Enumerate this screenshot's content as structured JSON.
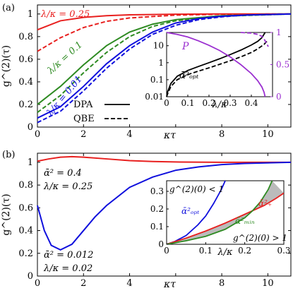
{
  "chart_data": [
    {
      "panel": "(a)",
      "type": "line",
      "xlabel": "κτ",
      "ylabel": "g^(2)(τ)",
      "xlim": [
        0,
        11
      ],
      "ylim": [
        0,
        1.08
      ],
      "x_ticks": [
        0,
        2,
        4,
        6,
        8,
        10
      ],
      "y_ticks": [
        0,
        0.2,
        0.4,
        0.6,
        0.8,
        1
      ],
      "legend": {
        "position": "bottom-center",
        "entries": [
          {
            "label": "DPA",
            "style": "solid"
          },
          {
            "label": "QBE",
            "style": "dashed"
          }
        ]
      },
      "annotations": [
        "λ/κ = 0.25",
        "λ/κ = 0.1",
        "λ/κ = 0.01"
      ],
      "series": [
        {
          "label": "λ/κ = 0.25",
          "method": "DPA",
          "color": "#e8201f",
          "style": "solid",
          "x": [
            0,
            1,
            2,
            3,
            4,
            6,
            8,
            11
          ],
          "values": [
            0.86,
            0.94,
            0.97,
            0.985,
            0.993,
            0.998,
            1.0,
            1.0
          ]
        },
        {
          "label": "λ/κ = 0.25",
          "method": "QBE",
          "color": "#e8201f",
          "style": "dashed",
          "x": [
            0,
            1,
            2,
            3,
            4,
            6,
            8,
            11
          ],
          "values": [
            0.67,
            0.79,
            0.88,
            0.935,
            0.965,
            0.99,
            0.998,
            1.0
          ]
        },
        {
          "label": "λ/κ = 0.1",
          "method": "DPA",
          "color": "#2e8b22",
          "style": "solid",
          "x": [
            0,
            1,
            2,
            3,
            4,
            5,
            6,
            8,
            11
          ],
          "values": [
            0.2,
            0.36,
            0.55,
            0.72,
            0.84,
            0.91,
            0.95,
            0.985,
            1.0
          ]
        },
        {
          "label": "λ/κ = 0.1",
          "method": "QBE",
          "color": "#2e8b22",
          "style": "dashed",
          "x": [
            0,
            1,
            2,
            3,
            4,
            5,
            6,
            8,
            11
          ],
          "values": [
            0.13,
            0.28,
            0.48,
            0.66,
            0.8,
            0.89,
            0.94,
            0.98,
            1.0
          ]
        },
        {
          "label": "λ/κ = 0.01",
          "method": "DPA",
          "color": "#1010dd",
          "style": "solid",
          "x": [
            0,
            1,
            2,
            3,
            4,
            5,
            6,
            7,
            8,
            9,
            11
          ],
          "values": [
            0.08,
            0.18,
            0.36,
            0.56,
            0.72,
            0.84,
            0.92,
            0.96,
            0.98,
            0.99,
            1.0
          ]
        },
        {
          "label": "λ/κ = 0.01",
          "method": "QBE",
          "color": "#1010dd",
          "style": "dashed",
          "x": [
            0,
            1,
            2,
            3,
            4,
            5,
            6,
            7,
            8,
            9,
            11
          ],
          "values": [
            0.04,
            0.14,
            0.32,
            0.52,
            0.69,
            0.82,
            0.9,
            0.95,
            0.975,
            0.99,
            1.0
          ]
        }
      ],
      "inset": {
        "xlabel": "λ/κ",
        "xlim": [
          0,
          0.5
        ],
        "x_ticks": [
          0,
          0.1,
          0.2,
          0.3,
          0.4
        ],
        "left_axis": {
          "scale": "log",
          "ylim": [
            0.01,
            60
          ],
          "ticks": [
            0.01,
            0.1,
            1,
            10
          ],
          "tick_labels": [
            "0.01",
            "0.1",
            "1",
            "10"
          ]
        },
        "right_axis": {
          "scale": "linear",
          "ylim": [
            0,
            1
          ],
          "ticks": [
            0,
            0.5,
            1
          ],
          "tick_labels": [
            "0",
            "0.5",
            "1"
          ]
        },
        "annotations": [
          "ᾱ²ₒₚₜ",
          "P"
        ],
        "series": [
          {
            "label": "ᾱ²ₒₚₜ",
            "method": "DPA",
            "axis": "left",
            "color": "#000000",
            "style": "solid",
            "x": [
              0,
              0.005,
              0.02,
              0.05,
              0.1,
              0.15,
              0.2,
              0.25,
              0.3,
              0.35,
              0.4,
              0.43,
              0.45,
              0.465
            ],
            "values": [
              0.01,
              0.02,
              0.06,
              0.16,
              0.35,
              0.6,
              1.0,
              1.7,
              3.0,
              5.5,
              11,
              18,
              30,
              60
            ]
          },
          {
            "label": "ᾱ²ₒₚₜ",
            "method": "QBE",
            "axis": "left",
            "color": "#000000",
            "style": "dashed",
            "x": [
              0,
              0.005,
              0.02,
              0.05,
              0.1,
              0.15,
              0.2,
              0.25,
              0.3,
              0.35,
              0.4,
              0.43,
              0.46,
              0.48
            ],
            "values": [
              0.01,
              0.015,
              0.04,
              0.1,
              0.2,
              0.32,
              0.5,
              0.8,
              1.3,
              2.2,
              4.0,
              6.5,
              12,
              22
            ]
          },
          {
            "label": "P",
            "method": "DPA",
            "axis": "right",
            "color": "#9b30d0",
            "style": "solid",
            "x": [
              0,
              0.05,
              0.1,
              0.15,
              0.2,
              0.25,
              0.3,
              0.35,
              0.4,
              0.43,
              0.45,
              0.46,
              0.465
            ],
            "values": [
              1.0,
              0.97,
              0.93,
              0.87,
              0.8,
              0.72,
              0.62,
              0.5,
              0.36,
              0.25,
              0.15,
              0.07,
              0.0
            ]
          },
          {
            "label": "P",
            "method": "QBE",
            "axis": "right",
            "color": "#9b30d0",
            "style": "dashed",
            "x": [
              0.35,
              0.4,
              0.43,
              0.45,
              0.46,
              0.47,
              0.48
            ],
            "values": [
              1.0,
              0.99,
              0.97,
              0.94,
              0.9,
              0.84,
              0.78
            ]
          }
        ]
      }
    },
    {
      "panel": "(b)",
      "type": "line",
      "xlabel": "κτ",
      "ylabel": "g^(2)(τ)",
      "xlim": [
        0,
        11
      ],
      "ylim": [
        0,
        1.08
      ],
      "x_ticks": [
        0,
        2,
        4,
        6,
        8,
        10
      ],
      "y_ticks": [
        0,
        0.2,
        0.4,
        0.6,
        0.8,
        1
      ],
      "annotations": [
        "ᾱ² = 0.4",
        "λ/κ = 0.25",
        "ᾱ² = 0.012",
        "λ/κ = 0.02"
      ],
      "series": [
        {
          "label": "ᾱ² = 0.4, λ/κ = 0.25",
          "color": "#e8201f",
          "style": "solid",
          "x": [
            0,
            0.5,
            1,
            1.5,
            2,
            3,
            4,
            5,
            6,
            8,
            11
          ],
          "values": [
            1.01,
            1.03,
            1.045,
            1.05,
            1.045,
            1.03,
            1.015,
            1.007,
            1.003,
            1.0,
            1.0
          ]
        },
        {
          "label": "ᾱ² = 0.012, λ/κ = 0.02",
          "color": "#1010dd",
          "style": "solid",
          "x": [
            0,
            0.3,
            0.6,
            1.0,
            1.5,
            2.0,
            2.5,
            3,
            4,
            5,
            6,
            7,
            8,
            9,
            11
          ],
          "values": [
            0.62,
            0.4,
            0.27,
            0.23,
            0.28,
            0.4,
            0.52,
            0.62,
            0.78,
            0.87,
            0.93,
            0.96,
            0.98,
            0.99,
            1.0
          ]
        }
      ],
      "inset": {
        "xlabel": "λ/κ",
        "xlim": [
          0,
          0.3
        ],
        "ylim": [
          0,
          0.36
        ],
        "x_ticks": [
          0,
          0.1,
          0.2,
          0.3
        ],
        "y_ticks": [
          0,
          0.1,
          0.2,
          0.3
        ],
        "annotations": [
          "g^(2)(0) < 1",
          "g^(2)(0) > 1",
          "ᾱ²ₒₚₜ",
          "ᾱ²ₘᵢₙ",
          "ᾱ²₊"
        ],
        "series": [
          {
            "label": "ᾱ²ₒₚₜ",
            "color": "#1010dd",
            "style": "solid",
            "x": [
              0,
              0.02,
              0.05,
              0.08,
              0.1,
              0.12,
              0.14,
              0.15
            ],
            "values": [
              0,
              0.015,
              0.05,
              0.11,
              0.16,
              0.23,
              0.31,
              0.36
            ]
          },
          {
            "label": "ᾱ²₊",
            "color": "#e8201f",
            "style": "solid",
            "x": [
              0,
              0.05,
              0.1,
              0.15,
              0.2,
              0.25,
              0.28,
              0.3
            ],
            "values": [
              0,
              0.035,
              0.075,
              0.12,
              0.17,
              0.22,
              0.26,
              0.29
            ]
          },
          {
            "label": "ᾱ²ₘᵢₙ",
            "color": "#2e8b22",
            "style": "solid",
            "x": [
              0,
              0.05,
              0.1,
              0.15,
              0.2,
              0.22,
              0.24,
              0.26,
              0.27
            ],
            "values": [
              0,
              0.02,
              0.045,
              0.085,
              0.15,
              0.19,
              0.24,
              0.31,
              0.36
            ]
          }
        ],
        "shaded_region": {
          "between": [
            "ᾱ²₊",
            "ᾱ²ₘᵢₙ"
          ],
          "color": "#bbbbbb"
        }
      }
    }
  ]
}
